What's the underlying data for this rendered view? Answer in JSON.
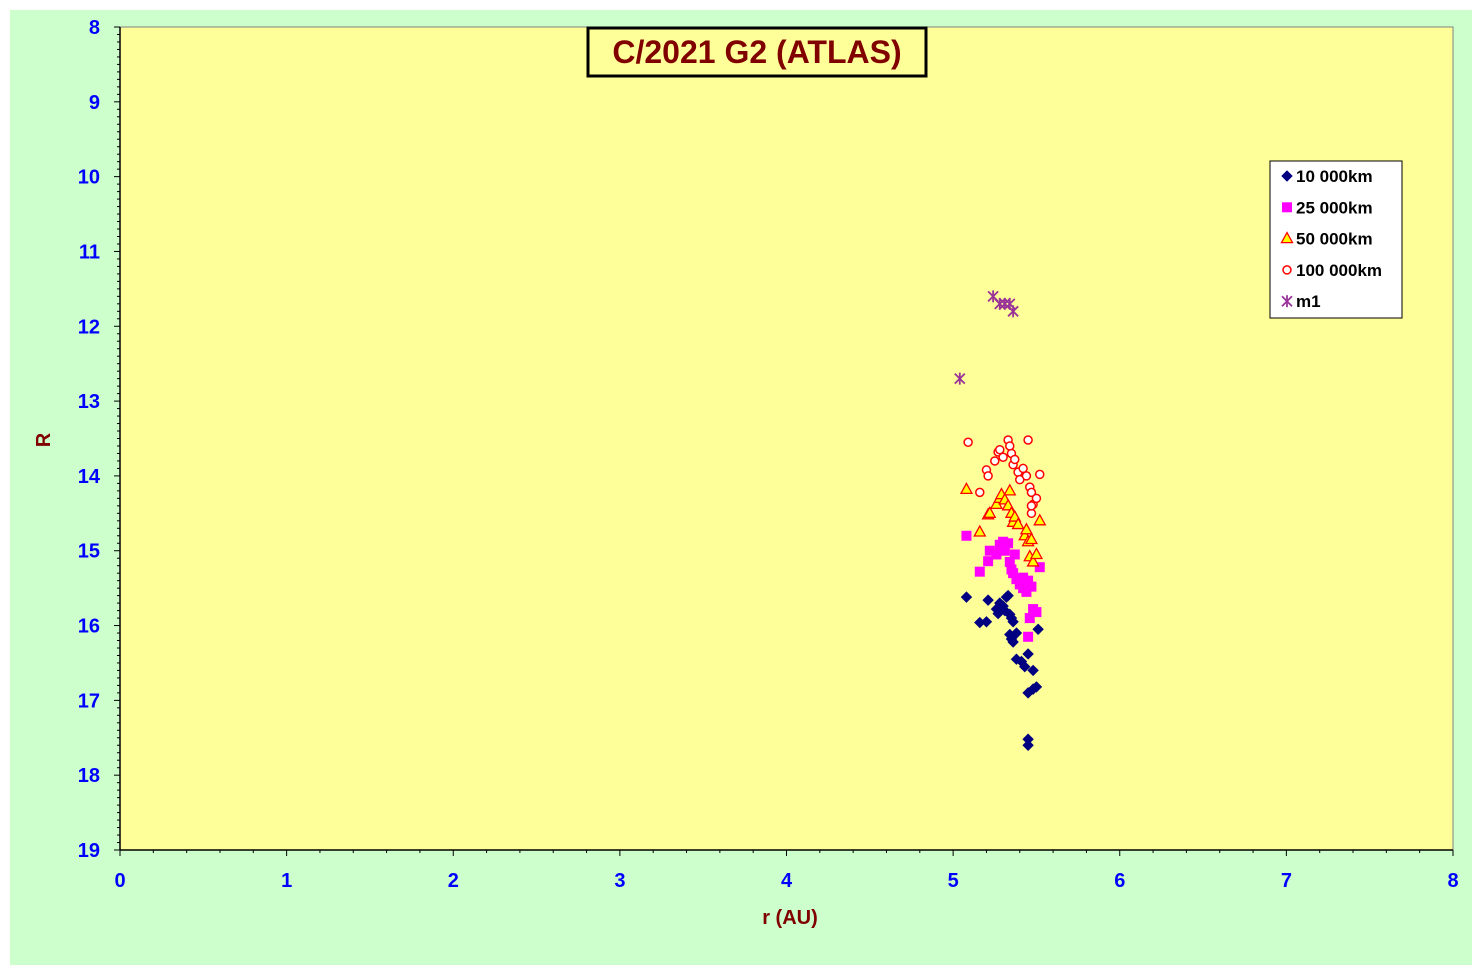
{
  "chart_data": {
    "type": "scatter",
    "title": "C/2021 G2 (ATLAS)",
    "xlabel": "r (AU)",
    "ylabel": "R",
    "xlim": [
      0,
      8
    ],
    "ylim": [
      8,
      19
    ],
    "y_inverted": true,
    "x_ticks": [
      "0",
      "1",
      "2",
      "3",
      "4",
      "5",
      "6",
      "7",
      "8"
    ],
    "y_ticks": [
      "8",
      "9",
      "10",
      "11",
      "12",
      "13",
      "14",
      "15",
      "16",
      "17",
      "18",
      "19"
    ],
    "grid": false,
    "legend_position": "top-right",
    "plot_background": "#ffff99",
    "chart_background": "#ccffcc",
    "series": [
      {
        "name": "10 000km",
        "marker": "diamond",
        "color": "#000080",
        "points": [
          [
            5.08,
            15.62
          ],
          [
            5.16,
            15.96
          ],
          [
            5.2,
            15.95
          ],
          [
            5.21,
            15.66
          ],
          [
            5.26,
            15.78
          ],
          [
            5.27,
            15.84
          ],
          [
            5.28,
            15.7
          ],
          [
            5.3,
            15.74
          ],
          [
            5.31,
            15.8
          ],
          [
            5.32,
            15.62
          ],
          [
            5.33,
            15.6
          ],
          [
            5.34,
            15.85
          ],
          [
            5.35,
            15.9
          ],
          [
            5.36,
            15.95
          ],
          [
            5.34,
            16.12
          ],
          [
            5.35,
            16.18
          ],
          [
            5.36,
            16.22
          ],
          [
            5.38,
            16.1
          ],
          [
            5.38,
            16.45
          ],
          [
            5.41,
            16.48
          ],
          [
            5.43,
            16.55
          ],
          [
            5.45,
            16.38
          ],
          [
            5.48,
            16.6
          ],
          [
            5.45,
            16.9
          ],
          [
            5.48,
            16.85
          ],
          [
            5.5,
            16.82
          ],
          [
            5.51,
            16.05
          ],
          [
            5.45,
            17.52
          ],
          [
            5.45,
            17.6
          ]
        ]
      },
      {
        "name": "25 000km",
        "marker": "square",
        "color": "#ff00ff",
        "points": [
          [
            5.08,
            14.8
          ],
          [
            5.16,
            15.28
          ],
          [
            5.21,
            15.14
          ],
          [
            5.22,
            15.0
          ],
          [
            5.26,
            15.05
          ],
          [
            5.28,
            14.92
          ],
          [
            5.3,
            14.88
          ],
          [
            5.31,
            15.0
          ],
          [
            5.33,
            14.9
          ],
          [
            5.34,
            15.15
          ],
          [
            5.35,
            15.25
          ],
          [
            5.36,
            15.3
          ],
          [
            5.37,
            15.05
          ],
          [
            5.38,
            15.38
          ],
          [
            5.4,
            15.45
          ],
          [
            5.42,
            15.5
          ],
          [
            5.42,
            15.36
          ],
          [
            5.44,
            15.55
          ],
          [
            5.45,
            15.4
          ],
          [
            5.46,
            15.9
          ],
          [
            5.47,
            15.48
          ],
          [
            5.48,
            15.78
          ],
          [
            5.5,
            15.82
          ],
          [
            5.52,
            15.22
          ],
          [
            5.45,
            16.15
          ]
        ]
      },
      {
        "name": "50 000km",
        "marker": "triangle",
        "color": "#ff0000",
        "fill": "#ffff00",
        "points": [
          [
            5.08,
            14.18
          ],
          [
            5.16,
            14.75
          ],
          [
            5.21,
            14.52
          ],
          [
            5.22,
            14.5
          ],
          [
            5.26,
            14.38
          ],
          [
            5.28,
            14.3
          ],
          [
            5.29,
            14.25
          ],
          [
            5.31,
            14.32
          ],
          [
            5.33,
            14.4
          ],
          [
            5.34,
            14.2
          ],
          [
            5.35,
            14.5
          ],
          [
            5.36,
            14.62
          ],
          [
            5.37,
            14.55
          ],
          [
            5.39,
            14.65
          ],
          [
            5.43,
            14.8
          ],
          [
            5.44,
            14.72
          ],
          [
            5.45,
            14.88
          ],
          [
            5.46,
            15.08
          ],
          [
            5.47,
            14.85
          ],
          [
            5.48,
            15.15
          ],
          [
            5.5,
            15.05
          ],
          [
            5.52,
            14.6
          ]
        ]
      },
      {
        "name": "100 000km",
        "marker": "circle",
        "color": "#ff0000",
        "points": [
          [
            5.09,
            13.55
          ],
          [
            5.16,
            14.22
          ],
          [
            5.2,
            13.92
          ],
          [
            5.21,
            14.0
          ],
          [
            5.25,
            13.8
          ],
          [
            5.27,
            13.68
          ],
          [
            5.28,
            13.65
          ],
          [
            5.3,
            13.75
          ],
          [
            5.33,
            13.52
          ],
          [
            5.34,
            13.6
          ],
          [
            5.35,
            13.7
          ],
          [
            5.36,
            13.85
          ],
          [
            5.37,
            13.78
          ],
          [
            5.39,
            13.95
          ],
          [
            5.4,
            14.05
          ],
          [
            5.42,
            13.9
          ],
          [
            5.44,
            14.0
          ],
          [
            5.45,
            13.52
          ],
          [
            5.46,
            14.15
          ],
          [
            5.47,
            14.5
          ],
          [
            5.47,
            14.22
          ],
          [
            5.48,
            14.38
          ],
          [
            5.5,
            14.3
          ],
          [
            5.52,
            13.98
          ],
          [
            5.47,
            14.4
          ]
        ]
      },
      {
        "name": "m1",
        "marker": "star",
        "color": "#993399",
        "points": [
          [
            5.04,
            12.7
          ],
          [
            5.24,
            11.6
          ],
          [
            5.28,
            11.7
          ],
          [
            5.31,
            11.7
          ],
          [
            5.34,
            11.7
          ],
          [
            5.36,
            11.8
          ]
        ]
      }
    ]
  }
}
